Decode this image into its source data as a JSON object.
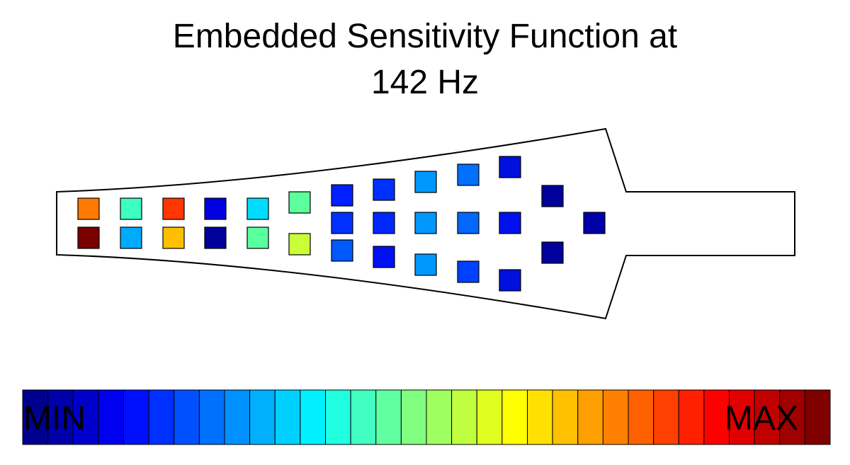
{
  "title": {
    "line1": "Embedded Sensitivity Function at",
    "line2": "142 Hz"
  },
  "colorbar": {
    "min_label": "MIN",
    "max_label": "MAX",
    "colors": [
      "#00008f",
      "#0000aa",
      "#0000cc",
      "#0000f0",
      "#0010ff",
      "#0030ff",
      "#0050ff",
      "#0070ff",
      "#0090ff",
      "#00b0ff",
      "#00d0ff",
      "#00f0ff",
      "#20ffe0",
      "#40ffc0",
      "#60ffa0",
      "#80ff80",
      "#a0ff60",
      "#c0ff40",
      "#e0ff20",
      "#ffff00",
      "#ffe000",
      "#ffc000",
      "#ffa000",
      "#ff8000",
      "#ff6000",
      "#ff4000",
      "#ff2000",
      "#ff0000",
      "#e00000",
      "#c00000",
      "#a00000",
      "#800000"
    ]
  },
  "sensors": [
    {
      "color": "#ff7a00"
    },
    {
      "color": "#7a0000"
    },
    {
      "color": "#3dffc2"
    },
    {
      "color": "#00aaff"
    },
    {
      "color": "#ff3600"
    },
    {
      "color": "#ffbf00"
    },
    {
      "color": "#0000e0"
    },
    {
      "color": "#00009a"
    },
    {
      "color": "#00dcff"
    },
    {
      "color": "#5aff9e"
    },
    {
      "color": "#5cff9c"
    },
    {
      "color": "#c8ff38"
    },
    {
      "color": "#0020ff"
    },
    {
      "color": "#0030ff"
    },
    {
      "color": "#0058ff"
    },
    {
      "color": "#0030ff"
    },
    {
      "color": "#0028ff"
    },
    {
      "color": "#0010f5"
    },
    {
      "color": "#0098ff"
    },
    {
      "color": "#0098ff"
    },
    {
      "color": "#0098ff"
    },
    {
      "color": "#0070ff"
    },
    {
      "color": "#0068ff"
    },
    {
      "color": "#0040ff"
    },
    {
      "color": "#0010dd"
    },
    {
      "color": "#0010ee"
    },
    {
      "color": "#0010dd"
    },
    {
      "color": "#00009a"
    },
    {
      "color": "#00009a"
    },
    {
      "color": "#0000a8"
    }
  ]
}
